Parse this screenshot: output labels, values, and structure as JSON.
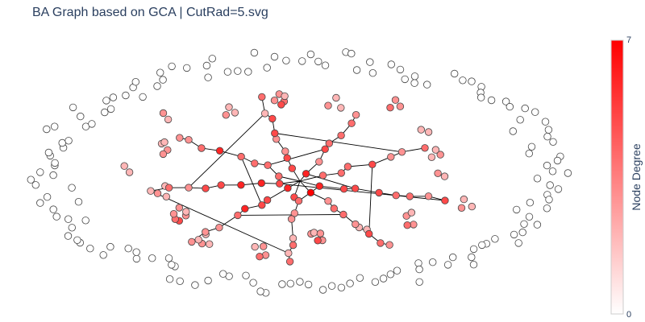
{
  "chart_data": {
    "type": "network",
    "title": "BA Graph based on GCA | CutRad=5.svg",
    "xlabel": "",
    "ylabel": "",
    "grid": false,
    "legend": "none",
    "colorbar": {
      "title": "Node Degree",
      "min": 0,
      "max": 7,
      "min_label": "0",
      "max_label": "7",
      "color_low": "#ffffff",
      "color_high": "#ff0000",
      "placement": "right"
    },
    "node_outline_color": "#444444",
    "edge_color": "#000000",
    "isolated_node_count": 150,
    "clusters": [
      {
        "degrees": [
          2,
          3,
          2
        ]
      },
      {
        "degrees": [
          3,
          4,
          3,
          2
        ]
      },
      {
        "degrees": [
          2,
          2
        ]
      },
      {
        "degrees": [
          3,
          5,
          3,
          2,
          3
        ]
      },
      {
        "degrees": [
          3,
          4,
          2,
          3
        ]
      },
      {
        "degrees": [
          2,
          3,
          2,
          2
        ]
      },
      {
        "degrees": [
          3,
          5,
          4,
          3,
          3,
          2
        ]
      },
      {
        "degrees": [
          2,
          3,
          2
        ]
      },
      {
        "degrees": [
          2,
          2
        ]
      },
      {
        "degrees": [
          3,
          3,
          2,
          2
        ]
      },
      {
        "degrees": [
          2,
          3
        ]
      },
      {
        "degrees": [
          2,
          3,
          2
        ]
      },
      {
        "degrees": [
          4,
          5,
          3,
          3,
          2
        ]
      },
      {
        "degrees": [
          2,
          3,
          2
        ]
      },
      {
        "degrees": [
          3,
          4,
          3
        ]
      },
      {
        "degrees": [
          2,
          2
        ]
      },
      {
        "degrees": [
          3,
          2,
          2
        ]
      },
      {
        "degrees": [
          2,
          3
        ]
      }
    ],
    "main_component_degrees": [
      6,
      7,
      5,
      6,
      5,
      4,
      5,
      6,
      4,
      5,
      3,
      4,
      5,
      6,
      4,
      5,
      3,
      4,
      5,
      4,
      3,
      5,
      6,
      4,
      3,
      5,
      4,
      5,
      4,
      3,
      6,
      5,
      4,
      3,
      4,
      5,
      4,
      3,
      2,
      4,
      5,
      6,
      5,
      4,
      3,
      4,
      5,
      4,
      3,
      3,
      4,
      5,
      4,
      3,
      3,
      4,
      2,
      3,
      4,
      3,
      2,
      3,
      4,
      5,
      3,
      4,
      3,
      2,
      3,
      4
    ]
  }
}
